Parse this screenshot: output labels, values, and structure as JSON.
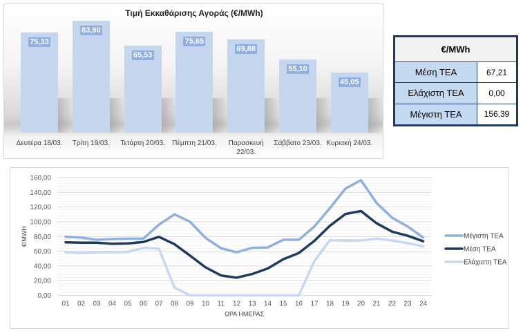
{
  "bar_chart": {
    "title": "Τιμή Εκκαθάρισης Αγοράς (€/MWh)",
    "bar_color": "#c5d6ee",
    "label_color": "#8fb0df"
  },
  "stats_table": {
    "header": "€/MWh",
    "rows": [
      {
        "label": "Μέση ΤΕΑ",
        "value": "67,21"
      },
      {
        "label": "Ελάχιστη ΤΕΑ",
        "value": "0,00"
      },
      {
        "label": "Μέγιστη ΤΕΑ",
        "value": "156,39"
      }
    ]
  },
  "chart_data": [
    {
      "type": "bar",
      "title": "Τιμή Εκκαθάρισης Αγοράς (€/MWh)",
      "categories": [
        "Δευτέρα 18/03.",
        "Τρίτη 19/03.",
        "Τετάρτη 20/03.",
        "Πέμπτη 21/03.",
        "Παρασκευή 22/03.",
        "Σάββατο 23/03.",
        "Κυριακή 24/03."
      ],
      "category_lines": [
        [
          "Δευτέρα 18/03."
        ],
        [
          "Τρίτη 19/03."
        ],
        [
          "Τετάρτη 20/03."
        ],
        [
          "Πέμπτη 21/03."
        ],
        [
          "Παρασκευή",
          "22/03."
        ],
        [
          "Σάββατο 23/03."
        ],
        [
          "Κυριακή 24/03."
        ]
      ],
      "values": [
        75.33,
        83.9,
        65.53,
        75.65,
        69.88,
        55.1,
        45.05
      ],
      "value_labels": [
        "75,33",
        "83,90",
        "65,53",
        "75,65",
        "69,88",
        "55,10",
        "45,05"
      ],
      "xlabel": "",
      "ylabel": "",
      "ylim": [
        0,
        90
      ]
    },
    {
      "type": "line",
      "title": "",
      "xlabel": "ΩΡΑ ΗΜΕΡΑΣ",
      "ylabel": "€/MWH",
      "x": [
        "01",
        "02",
        "03",
        "04",
        "05",
        "06",
        "07",
        "08",
        "09",
        "10",
        "11",
        "12",
        "13",
        "14",
        "15",
        "16",
        "17",
        "18",
        "19",
        "20",
        "21",
        "22",
        "23",
        "24"
      ],
      "ylim": [
        0,
        160
      ],
      "yticks": [
        0,
        20,
        40,
        60,
        80,
        100,
        120,
        140,
        160
      ],
      "ytick_labels": [
        "0,00",
        "20,00",
        "40,00",
        "60,00",
        "80,00",
        "100,00",
        "120,00",
        "140,00",
        "160,00"
      ],
      "grid": true,
      "legend_position": "right",
      "series": [
        {
          "name": "Μέγιστη ΤΕΑ",
          "color": "#8eb0df",
          "values": [
            79.5,
            78.5,
            75.5,
            76.5,
            77,
            77,
            96,
            110,
            100,
            78,
            64,
            58.5,
            64.5,
            65,
            75.5,
            75.5,
            93.5,
            118.5,
            145,
            156.39,
            125.5,
            105.5,
            93.5,
            78.5
          ]
        },
        {
          "name": "Μέση ΤΕΑ",
          "color": "#1f3a5f",
          "values": [
            72,
            71.5,
            71.5,
            70,
            70.5,
            72.5,
            79.5,
            69.5,
            54,
            38,
            27,
            24,
            29,
            36.5,
            49,
            57.5,
            74,
            94.5,
            110.5,
            114.5,
            98,
            86.5,
            81,
            73.5
          ]
        },
        {
          "name": "Ελάχιστη ΤΕΑ",
          "color": "#c5d9f1",
          "values": [
            58.5,
            57.5,
            58.5,
            58.5,
            59,
            64.5,
            63.5,
            10.5,
            0,
            0,
            0,
            0,
            0,
            0,
            0,
            0,
            46.5,
            75,
            74.5,
            74.5,
            77,
            74.5,
            71,
            66.5
          ]
        }
      ]
    }
  ]
}
